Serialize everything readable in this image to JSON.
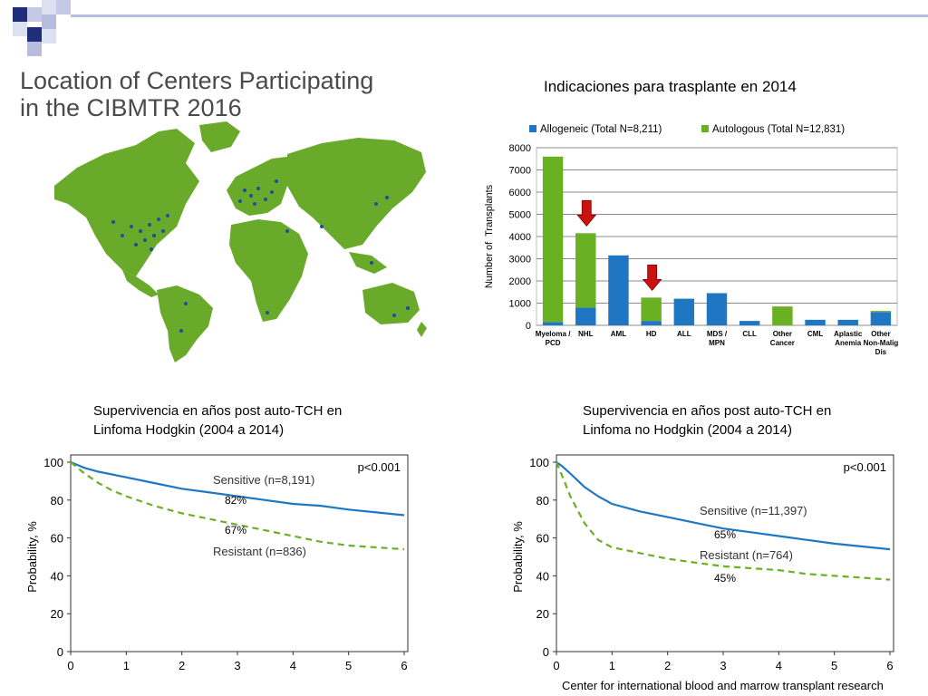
{
  "slide": {
    "map_title": [
      "Location of Centers Participating",
      "in the CIBMTR 2016"
    ],
    "bar_title": "Indicaciones para trasplante en 2014",
    "km1_title": [
      "Supervivencia en años post auto-TCH en",
      "Linfoma Hodgkin (2004 a 2014)"
    ],
    "km2_title": [
      "Supervivencia en años post auto-TCH en",
      "Linfoma no Hodgkin (2004 a 2014)"
    ],
    "credit": "Center for international blood and marrow transplant research",
    "colors": {
      "accent_navy": "#1f2d7a",
      "accent_light": "#b8bde0",
      "map_land": "#6aaa2a",
      "map_dots": "#1f4e9a",
      "arrow": "#cc1111"
    },
    "icons": [
      "down-arrow-icon",
      "down-arrow-icon"
    ]
  },
  "chart_data": [
    {
      "type": "bar",
      "stacked": true,
      "title": "",
      "ylabel": "Number of  Transplants",
      "ylim": [
        0,
        8000
      ],
      "yticks": [
        0,
        1000,
        2000,
        3000,
        4000,
        5000,
        6000,
        7000,
        8000
      ],
      "grid": true,
      "legend_position": "top",
      "categories": [
        "Myeloma / PCD",
        "NHL",
        "AML",
        "HD",
        "ALL",
        "MDS / MPN",
        "CLL",
        "Other Cancer",
        "CML",
        "Aplastic Anemia",
        "Other Non-Malig Dis"
      ],
      "category_lines": [
        [
          "Myeloma /",
          "PCD"
        ],
        [
          "NHL"
        ],
        [
          "AML"
        ],
        [
          "HD"
        ],
        [
          "ALL"
        ],
        [
          "MDS /",
          "MPN"
        ],
        [
          "CLL"
        ],
        [
          "Other",
          "Cancer"
        ],
        [
          "CML"
        ],
        [
          "Aplastic",
          "Anemia"
        ],
        [
          "Other",
          "Non-Malig",
          "Dis"
        ]
      ],
      "series": [
        {
          "name": "Allogeneic (Total N=8,211)",
          "color": "#1f77c4",
          "values": [
            150,
            800,
            3150,
            200,
            1200,
            1450,
            200,
            0,
            250,
            250,
            600
          ]
        },
        {
          "name": "Autologous (Total N=12,831)",
          "color": "#6ab023",
          "values": [
            7450,
            3350,
            0,
            1050,
            0,
            0,
            0,
            850,
            0,
            0,
            50
          ]
        }
      ],
      "highlighted_categories": [
        "NHL",
        "HD"
      ]
    },
    {
      "type": "line",
      "ylabel": "Probability, %",
      "ylim": [
        0,
        100
      ],
      "xlim": [
        0,
        6
      ],
      "xticks": [
        0,
        1,
        2,
        3,
        4,
        5,
        6
      ],
      "yticks": [
        0,
        20,
        40,
        60,
        80,
        100
      ],
      "pvalue": "p<0.001",
      "series": [
        {
          "name": "Sensitive (n=8,191)",
          "color": "#1f77c4",
          "style": "solid",
          "x": [
            0,
            0.25,
            0.5,
            1,
            1.5,
            2,
            2.5,
            3,
            3.5,
            4,
            4.5,
            5,
            5.5,
            6
          ],
          "y": [
            100,
            97,
            95,
            92,
            89,
            86,
            84,
            82,
            80,
            78,
            77,
            75,
            73.5,
            72
          ]
        },
        {
          "name": "Resistant (n=836)",
          "color": "#6ab023",
          "style": "dashed",
          "x": [
            0,
            0.25,
            0.5,
            0.75,
            1,
            1.5,
            2,
            2.5,
            3,
            3.5,
            4,
            4.5,
            5,
            5.5,
            6
          ],
          "y": [
            100,
            94,
            89,
            85,
            82,
            77,
            73,
            70,
            67,
            64,
            61,
            58,
            56,
            55,
            54
          ]
        }
      ],
      "annotations": [
        {
          "text": "82%",
          "x": 3,
          "y": 82
        },
        {
          "text": "67%",
          "x": 3,
          "y": 67
        }
      ]
    },
    {
      "type": "line",
      "ylabel": "Probability, %",
      "ylim": [
        0,
        100
      ],
      "xlim": [
        0,
        6
      ],
      "xticks": [
        0,
        1,
        2,
        3,
        4,
        5,
        6
      ],
      "yticks": [
        0,
        20,
        40,
        60,
        80,
        100
      ],
      "pvalue": "p<0.001",
      "series": [
        {
          "name": "Sensitive (n=11,397)",
          "color": "#1f77c4",
          "style": "solid",
          "x": [
            0,
            0.1,
            0.25,
            0.5,
            0.75,
            1,
            1.5,
            2,
            2.5,
            3,
            3.5,
            4,
            4.5,
            5,
            5.5,
            6
          ],
          "y": [
            100,
            98,
            94,
            87,
            82,
            78,
            74,
            71,
            68,
            65,
            63,
            61,
            59,
            57,
            55.5,
            54
          ]
        },
        {
          "name": "Resistant (n=764)",
          "color": "#6ab023",
          "style": "dashed",
          "x": [
            0,
            0.1,
            0.25,
            0.5,
            0.75,
            1,
            1.5,
            2,
            2.5,
            3,
            3.5,
            4,
            4.5,
            5,
            5.5,
            6
          ],
          "y": [
            100,
            93,
            82,
            68,
            59,
            55,
            52,
            49,
            47,
            45,
            44,
            43,
            41,
            40,
            39,
            38
          ]
        }
      ],
      "annotations": [
        {
          "text": "65%",
          "x": 3,
          "y": 65
        },
        {
          "text": "45%",
          "x": 3,
          "y": 45
        }
      ]
    }
  ]
}
